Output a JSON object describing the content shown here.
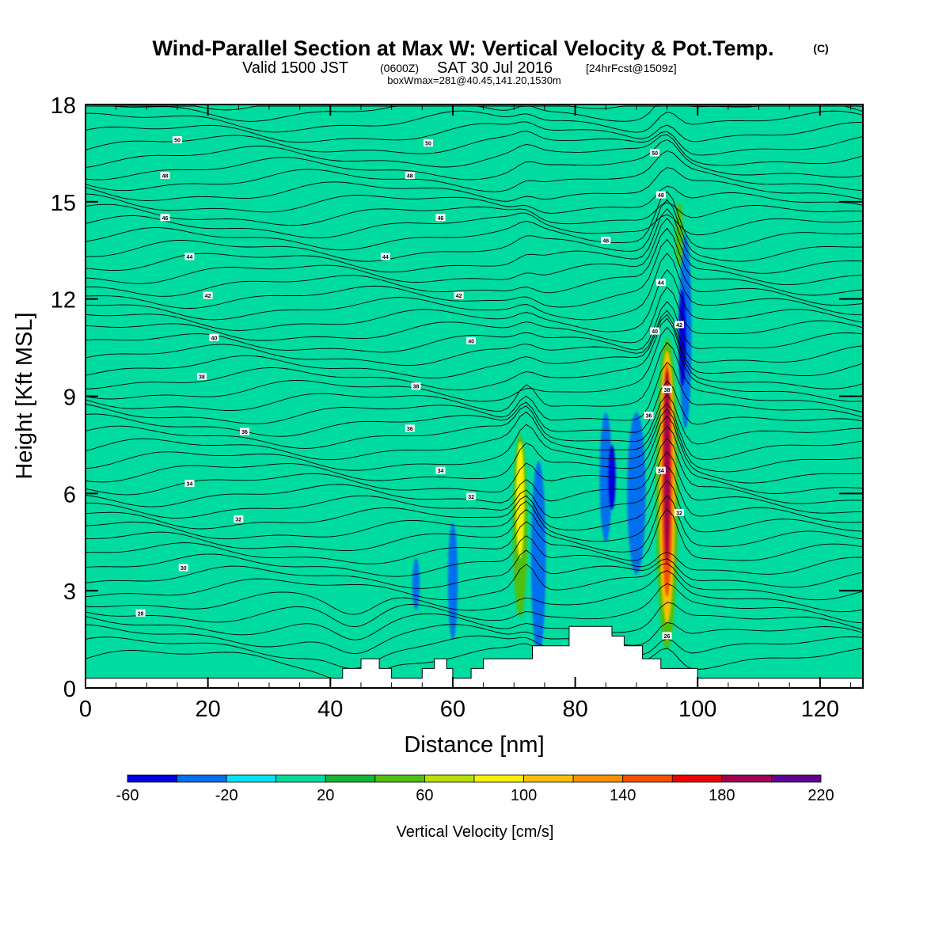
{
  "chart_data": {
    "type": "heatmap",
    "title": "Wind-Parallel Section at Max W: Vertical Velocity & Pot.Temp.",
    "title_mark": "(C)",
    "subtitle": {
      "valid": "Valid 1500 JST",
      "utc": "(0600Z)",
      "date": "SAT 30 Jul 2016",
      "fcst": "[24hrFcst@1509z]"
    },
    "box_note": "boxWmax=281@40.45,141.20,1530m",
    "xlabel": "Distance [nm]",
    "ylabel": "Height [Kft MSL]",
    "xlim": [
      0,
      127
    ],
    "ylim": [
      0,
      18
    ],
    "x_ticks": [
      "0",
      "20",
      "40",
      "60",
      "80",
      "100",
      "120"
    ],
    "y_ticks": [
      "0",
      "3",
      "6",
      "9",
      "12",
      "15",
      "18"
    ],
    "grid": false,
    "colorbar": {
      "label": "Vertical Velocity [cm/s]",
      "bounds": [
        -60,
        -40,
        -20,
        0,
        20,
        40,
        60,
        80,
        100,
        120,
        140,
        160,
        180,
        200,
        220
      ],
      "tick_labels": [
        "-60",
        "-20",
        "20",
        "60",
        "100",
        "140",
        "180",
        "220"
      ],
      "colors": [
        "#0000e0",
        "#0070f0",
        "#00e4f4",
        "#00dca0",
        "#10b830",
        "#50c010",
        "#b8e000",
        "#f8f000",
        "#f8c000",
        "#f89000",
        "#f85000",
        "#f00000",
        "#a00050",
        "#600090"
      ]
    },
    "background_w": 5,
    "terrain": [
      [
        0,
        0.3
      ],
      [
        42,
        0.3
      ],
      [
        42,
        0.6
      ],
      [
        45,
        0.6
      ],
      [
        45,
        0.9
      ],
      [
        48,
        0.9
      ],
      [
        48,
        0.6
      ],
      [
        50,
        0.6
      ],
      [
        50,
        0.3
      ],
      [
        55,
        0.3
      ],
      [
        55,
        0.6
      ],
      [
        57,
        0.6
      ],
      [
        57,
        0.9
      ],
      [
        59,
        0.9
      ],
      [
        59,
        0.6
      ],
      [
        60,
        0.6
      ],
      [
        60,
        0.3
      ],
      [
        63,
        0.3
      ],
      [
        63,
        0.6
      ],
      [
        65,
        0.6
      ],
      [
        65,
        0.9
      ],
      [
        73,
        0.9
      ],
      [
        73,
        1.3
      ],
      [
        79,
        1.3
      ],
      [
        79,
        1.6
      ],
      [
        79,
        1.9
      ],
      [
        86,
        1.9
      ],
      [
        86,
        1.6
      ],
      [
        88,
        1.6
      ],
      [
        88,
        1.3
      ],
      [
        91,
        1.3
      ],
      [
        91,
        0.9
      ],
      [
        94,
        0.9
      ],
      [
        94,
        0.6
      ],
      [
        100,
        0.6
      ],
      [
        100,
        0.3
      ],
      [
        127,
        0.3
      ]
    ],
    "w_features": [
      {
        "x": 7,
        "y": 8,
        "rx": 1.5,
        "ry": 3.5,
        "w": 5
      },
      {
        "x": 14,
        "y": 10,
        "rx": 1,
        "ry": 4,
        "w": 5
      },
      {
        "x": 20,
        "y": 9,
        "rx": 1.5,
        "ry": 5,
        "w": 5
      },
      {
        "x": 26,
        "y": 8,
        "rx": 2,
        "ry": 4,
        "w": 5
      },
      {
        "x": 35,
        "y": 10,
        "rx": 1.5,
        "ry": 4,
        "w": 5
      },
      {
        "x": 45,
        "y": 7,
        "rx": 2,
        "ry": 4,
        "w": 5
      },
      {
        "x": 56,
        "y": 12,
        "rx": 1.5,
        "ry": 4,
        "w": 5
      },
      {
        "x": 62,
        "y": 5,
        "rx": 1.5,
        "ry": 3,
        "w": 5
      },
      {
        "x": 71,
        "y": 5,
        "rx": 1.2,
        "ry": 2.8,
        "w": 40
      },
      {
        "x": 71,
        "y": 5.8,
        "rx": 0.7,
        "ry": 1.8,
        "w": 80
      },
      {
        "x": 74,
        "y": 4,
        "rx": 1.2,
        "ry": 3,
        "w": -30
      },
      {
        "x": 60,
        "y": 3.3,
        "rx": 0.8,
        "ry": 1.8,
        "w": -30
      },
      {
        "x": 54,
        "y": 3.2,
        "rx": 0.6,
        "ry": 0.8,
        "w": -30
      },
      {
        "x": 85,
        "y": 6.5,
        "rx": 1,
        "ry": 2,
        "w": -30
      },
      {
        "x": 86,
        "y": 6.5,
        "rx": 0.6,
        "ry": 1,
        "w": -50
      },
      {
        "x": 90,
        "y": 6,
        "rx": 1.5,
        "ry": 2.5,
        "w": -30
      },
      {
        "x": 98,
        "y": 11,
        "rx": 1,
        "ry": 3,
        "w": -30
      },
      {
        "x": 97.5,
        "y": 10.8,
        "rx": 0.6,
        "ry": 1.5,
        "w": -50
      },
      {
        "x": 95,
        "y": 6,
        "rx": 1.8,
        "ry": 4.8,
        "w": 40
      },
      {
        "x": 95,
        "y": 6.2,
        "rx": 1.3,
        "ry": 4.2,
        "w": 100
      },
      {
        "x": 95,
        "y": 6.4,
        "rx": 0.9,
        "ry": 3.6,
        "w": 140
      },
      {
        "x": 95,
        "y": 6.8,
        "rx": 0.5,
        "ry": 3,
        "w": 180
      },
      {
        "x": 97,
        "y": 14,
        "rx": 0.6,
        "ry": 1,
        "w": 40
      }
    ],
    "isentrope_labels": [
      {
        "x": 15,
        "y": 16.9,
        "text": "50"
      },
      {
        "x": 56,
        "y": 16.8,
        "text": "50"
      },
      {
        "x": 93,
        "y": 16.5,
        "text": "50"
      },
      {
        "x": 13,
        "y": 15.8,
        "text": "48"
      },
      {
        "x": 53,
        "y": 15.8,
        "text": "48"
      },
      {
        "x": 94,
        "y": 15.2,
        "text": "48"
      },
      {
        "x": 13,
        "y": 14.5,
        "text": "46"
      },
      {
        "x": 58,
        "y": 14.5,
        "text": "46"
      },
      {
        "x": 85,
        "y": 13.8,
        "text": "46"
      },
      {
        "x": 17,
        "y": 13.3,
        "text": "44"
      },
      {
        "x": 49,
        "y": 13.3,
        "text": "44"
      },
      {
        "x": 94,
        "y": 12.5,
        "text": "44"
      },
      {
        "x": 20,
        "y": 12.1,
        "text": "42"
      },
      {
        "x": 61,
        "y": 12.1,
        "text": "42"
      },
      {
        "x": 97,
        "y": 11.2,
        "text": "42"
      },
      {
        "x": 21,
        "y": 10.8,
        "text": "40"
      },
      {
        "x": 63,
        "y": 10.7,
        "text": "40"
      },
      {
        "x": 93,
        "y": 11.0,
        "text": "40"
      },
      {
        "x": 19,
        "y": 9.6,
        "text": "38"
      },
      {
        "x": 54,
        "y": 9.3,
        "text": "38"
      },
      {
        "x": 95,
        "y": 9.2,
        "text": "38"
      },
      {
        "x": 26,
        "y": 7.9,
        "text": "36"
      },
      {
        "x": 53,
        "y": 8.0,
        "text": "36"
      },
      {
        "x": 92,
        "y": 8.4,
        "text": "36"
      },
      {
        "x": 17,
        "y": 6.3,
        "text": "34"
      },
      {
        "x": 58,
        "y": 6.7,
        "text": "34"
      },
      {
        "x": 94,
        "y": 6.7,
        "text": "34"
      },
      {
        "x": 25,
        "y": 5.2,
        "text": "32"
      },
      {
        "x": 63,
        "y": 5.9,
        "text": "32"
      },
      {
        "x": 97,
        "y": 5.4,
        "text": "32"
      },
      {
        "x": 16,
        "y": 3.7,
        "text": "30"
      },
      {
        "x": 9,
        "y": 2.3,
        "text": "28"
      },
      {
        "x": 95,
        "y": 1.6,
        "text": "26"
      }
    ]
  }
}
